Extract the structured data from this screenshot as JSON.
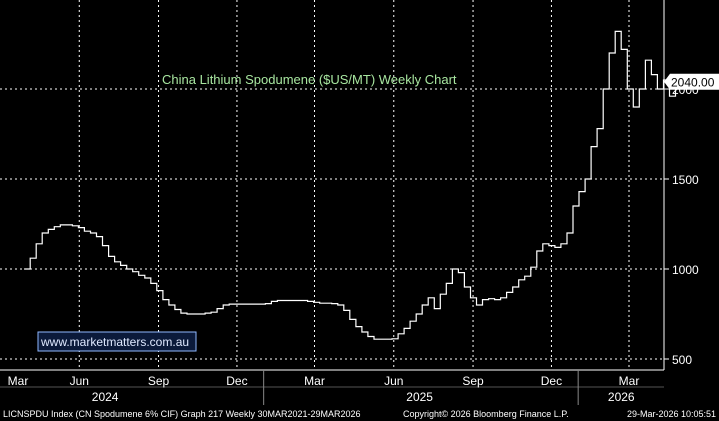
{
  "chart_data": {
    "type": "line",
    "title": "China Lithium Spodumene ($US/MT) Weekly Chart",
    "ylim": [
      470,
      2440
    ],
    "y_ticks": [
      500,
      1000,
      1500,
      2000
    ],
    "last_value": "2040.00",
    "x_ticks": [
      "Mar",
      "Jun",
      "Sep",
      "Dec",
      "Mar",
      "Jun",
      "Sep",
      "Dec",
      "Mar"
    ],
    "year_labels": [
      "2024",
      "2025",
      "2026"
    ],
    "grid": true,
    "series": [
      {
        "name": "",
        "color": "#ffffff",
        "step": true,
        "points": [
          [
            "2024-03-29",
            1000
          ],
          [
            "2024-04-05",
            1060
          ],
          [
            "2024-04-12",
            1140
          ],
          [
            "2024-04-19",
            1200
          ],
          [
            "2024-04-26",
            1220
          ],
          [
            "2024-05-03",
            1235
          ],
          [
            "2024-05-10",
            1245
          ],
          [
            "2024-05-24",
            1240
          ],
          [
            "2024-05-31",
            1230
          ],
          [
            "2024-06-07",
            1210
          ],
          [
            "2024-06-14",
            1200
          ],
          [
            "2024-06-21",
            1180
          ],
          [
            "2024-06-28",
            1130
          ],
          [
            "2024-07-05",
            1070
          ],
          [
            "2024-07-12",
            1040
          ],
          [
            "2024-07-19",
            1020
          ],
          [
            "2024-07-26",
            1000
          ],
          [
            "2024-08-02",
            985
          ],
          [
            "2024-08-09",
            965
          ],
          [
            "2024-08-16",
            950
          ],
          [
            "2024-08-23",
            920
          ],
          [
            "2024-08-30",
            880
          ],
          [
            "2024-09-06",
            830
          ],
          [
            "2024-09-13",
            800
          ],
          [
            "2024-09-20",
            775
          ],
          [
            "2024-09-27",
            755
          ],
          [
            "2024-10-04",
            750
          ],
          [
            "2024-10-25",
            755
          ],
          [
            "2024-11-01",
            760
          ],
          [
            "2024-11-08",
            780
          ],
          [
            "2024-11-15",
            800
          ],
          [
            "2024-11-22",
            805
          ],
          [
            "2024-12-27",
            805
          ],
          [
            "2025-01-03",
            808
          ],
          [
            "2025-01-10",
            820
          ],
          [
            "2025-01-17",
            825
          ],
          [
            "2025-02-21",
            820
          ],
          [
            "2025-02-28",
            815
          ],
          [
            "2025-03-07",
            810
          ],
          [
            "2025-03-21",
            808
          ],
          [
            "2025-03-28",
            800
          ],
          [
            "2025-04-04",
            770
          ],
          [
            "2025-04-11",
            720
          ],
          [
            "2025-04-18",
            680
          ],
          [
            "2025-04-25",
            650
          ],
          [
            "2025-05-02",
            625
          ],
          [
            "2025-05-09",
            610
          ],
          [
            "2025-05-30",
            612
          ],
          [
            "2025-06-06",
            640
          ],
          [
            "2025-06-13",
            670
          ],
          [
            "2025-06-20",
            710
          ],
          [
            "2025-06-27",
            750
          ],
          [
            "2025-07-04",
            800
          ],
          [
            "2025-07-11",
            840
          ],
          [
            "2025-07-18",
            780
          ],
          [
            "2025-07-25",
            860
          ],
          [
            "2025-08-01",
            920
          ],
          [
            "2025-08-08",
            1000
          ],
          [
            "2025-08-15",
            980
          ],
          [
            "2025-08-22",
            900
          ],
          [
            "2025-08-29",
            840
          ],
          [
            "2025-09-05",
            800
          ],
          [
            "2025-09-12",
            830
          ],
          [
            "2025-09-19",
            835
          ],
          [
            "2025-09-26",
            830
          ],
          [
            "2025-10-03",
            840
          ],
          [
            "2025-10-10",
            870
          ],
          [
            "2025-10-17",
            900
          ],
          [
            "2025-10-24",
            940
          ],
          [
            "2025-10-31",
            960
          ],
          [
            "2025-11-07",
            1010
          ],
          [
            "2025-11-14",
            1100
          ],
          [
            "2025-11-21",
            1140
          ],
          [
            "2025-11-28",
            1130
          ],
          [
            "2025-12-05",
            1120
          ],
          [
            "2025-12-12",
            1140
          ],
          [
            "2025-12-19",
            1200
          ],
          [
            "2025-12-26",
            1350
          ],
          [
            "2026-01-02",
            1430
          ],
          [
            "2026-01-09",
            1500
          ],
          [
            "2026-01-16",
            1680
          ],
          [
            "2026-01-23",
            1780
          ],
          [
            "2026-01-30",
            2000
          ],
          [
            "2026-02-06",
            2200
          ],
          [
            "2026-02-13",
            2320
          ],
          [
            "2026-02-20",
            2220
          ],
          [
            "2026-02-27",
            2000
          ],
          [
            "2026-03-06",
            1900
          ],
          [
            "2026-03-13",
            2000
          ],
          [
            "2026-03-20",
            2160
          ],
          [
            "2026-03-27",
            2080
          ],
          [
            "2026-04-03",
            2000
          ],
          [
            "2026-04-10",
            2050
          ],
          [
            "2026-04-17",
            1960
          ],
          [
            "2026-04-24",
            2040
          ]
        ]
      }
    ]
  },
  "watermark": "www.marketmatters.com.au",
  "footer": {
    "left": "LICNSPDU Index (CN Spodumene 6% CIF) Graph 217 Weekly 30MAR2021-29MAR2026",
    "center": "Copyright© 2026 Bloomberg Finance L.P.",
    "right": "29-Mar-2026 10:05:51"
  },
  "colors": {
    "background": "#000000",
    "line": "#ffffff",
    "grid": "#ffffff",
    "title": "#a8e6a0",
    "watermark_bg": "#0b1a3a",
    "watermark_border": "#8fb8ff"
  }
}
